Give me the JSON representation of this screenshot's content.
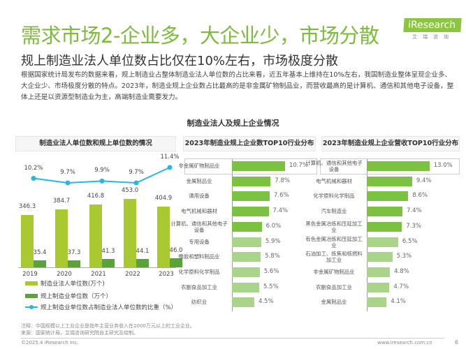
{
  "title": "需求市场2-企业多，大企业少，市场分散",
  "logo": {
    "name": "iResearch",
    "sub": "艾瑞咨询"
  },
  "subtitle": "规上制造业法人单位数占比仅在10%左右，市场极度分散",
  "paragraph": "根据国家统计局发布的数据来看，规上制造业占整体制造业法人单位数的占比来看，近五年基本上维持在10%左右，我国制造业整体呈现企业多、大企业少、市场极度分散的特点。2023年，制造业规上企业数占比最高的是非金属矿物制品业，而营收最高的是计算机、通信和其他电子设备，整体上还是以资源型制造业为主，高端制造业需要发力。",
  "section_title": "制造业法人及规上企业情况",
  "colors": {
    "green": "#7dbb3c",
    "bar_big": "#a8c92f",
    "bar_small": "#5aa33a",
    "line": "#29b6e0",
    "bar_dark": "#7cc242",
    "bar_light": "#a9d48a"
  },
  "chart_data": [
    {
      "type": "bar",
      "title": "制造业法人单位数和规上单位数的情况",
      "categories": [
        "2019",
        "2020",
        "2021",
        "2022",
        "2023"
      ],
      "series": [
        {
          "name": "制造业法人单位数(万个)",
          "values": [
            346.3,
            384.7,
            416.8,
            453.0,
            404.9
          ]
        },
        {
          "name": "规上制造业单位数（万个）",
          "values": [
            35.4,
            37.3,
            41.3,
            44.1,
            46.0
          ]
        },
        {
          "name": "规上制造业单位数占制造业法人单位数的比重（%）",
          "type": "line",
          "values": [
            10.2,
            9.7,
            9.9,
            9.7,
            11.4
          ]
        }
      ]
    },
    {
      "type": "bar",
      "orientation": "horizontal",
      "title": "2023年制造业规上企业数TOP10行业分布",
      "categories": [
        "非金属矿物制品业",
        "金属制品业",
        "通用设备",
        "电气机械和器材",
        "计算机、通信和其他电子设备",
        "专用设备",
        "橡胶和塑料制品业",
        "化学原料化学制品",
        "农副食品加工业",
        "纺织业"
      ],
      "values": [
        10.7,
        7.8,
        7.6,
        7.4,
        6.0,
        5.9,
        5.8,
        5.6,
        5.5,
        4.5
      ],
      "unit": "%"
    },
    {
      "type": "bar",
      "orientation": "horizontal",
      "title": "2023年制造业规上企业营收TOP10行业分布",
      "categories": [
        "计算机、通信和其他电子设备",
        "电气机械和器材",
        "化学原料化学制品",
        "汽车制造业",
        "黑色金属冶炼和压延加工业",
        "有色金属冶炼和压延加工业",
        "石油加工、炼焦和核燃料加工业",
        "非金属矿物制品业",
        "农副食品加工业",
        "金属制品业"
      ],
      "values": [
        13.0,
        9.4,
        8.6,
        7.4,
        7.3,
        6.5,
        5.3,
        4.8,
        4.7,
        4.1
      ],
      "unit": "%"
    }
  ],
  "note": "注释：中国规模以上工业企业是指年主营业务收入在2000万元以上的工业企业。",
  "source": "来源：国家统计局，艾瑞咨询研究院自主研究及绘制。",
  "copyright": "©2025.4 iResearch Inc.",
  "website": "www.iresearch.com.cn",
  "page": "6"
}
